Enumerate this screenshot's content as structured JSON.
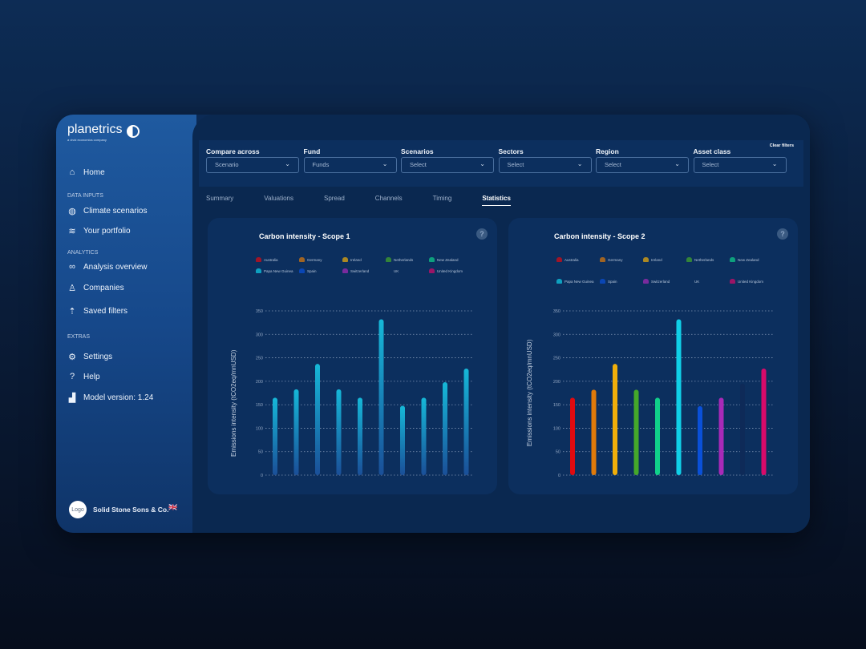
{
  "brand": {
    "name": "planetrics",
    "tagline": "a vivid economics company"
  },
  "sidebar": {
    "home": "Home",
    "sections": {
      "data_inputs": "DATA INPUTS",
      "analytics": "ANALYTICS",
      "extras": "EXTRAS"
    },
    "items": {
      "climate": "Climate scenarios",
      "portfolio": "Your portfolio",
      "analysis": "Analysis overview",
      "companies": "Companies",
      "saved": "Saved filters",
      "settings": "Settings",
      "help": "Help",
      "model": "Model version: 1.24"
    },
    "user": {
      "avatar": "Logo",
      "name": "Solid Stone Sons & Co.",
      "flag": "🇬🇧"
    }
  },
  "filters": [
    {
      "label": "Compare across",
      "value": "Scenario"
    },
    {
      "label": "Fund",
      "value": "Funds"
    },
    {
      "label": "Scenarios",
      "value": "Select"
    },
    {
      "label": "Sectors",
      "value": "Select"
    },
    {
      "label": "Region",
      "value": "Select"
    },
    {
      "label": "Asset class",
      "value": "Select"
    }
  ],
  "clear_filters": "Clear filters",
  "tabs": [
    "Summary",
    "Valuations",
    "Spread",
    "Channels",
    "Timing",
    "Statistics"
  ],
  "active_tab": "Statistics",
  "legend": [
    "Australia",
    "Germany",
    "Ireland",
    "Netherlands",
    "New Zealand",
    "Papa New Guinea",
    "Spain",
    "Switzerland",
    "UK",
    "United Kingdom"
  ],
  "colors": [
    "#e00a10",
    "#e07a0a",
    "#f0ae0a",
    "#45a82a",
    "#10d08a",
    "#10d0e8",
    "#0a50d8",
    "#a82ab8",
    "#0e2a58",
    "#d80a6a"
  ],
  "chart_data": [
    {
      "type": "bar",
      "title": "Carbon intensity - Scope 1",
      "ylabel": "Emissions intensity (tCO2eq/mnUSD)",
      "ylim": [
        0,
        350
      ],
      "yticks": [
        0,
        50,
        100,
        150,
        200,
        250,
        300,
        350
      ],
      "categories": [
        "Australia",
        "Germany",
        "Ireland",
        "Netherlands",
        "New Zealand",
        "Papa New Guinea",
        "Spain",
        "Switzerland",
        "UK",
        "United Kingdom"
      ],
      "values": [
        165,
        183,
        237,
        183,
        165,
        332,
        148,
        165,
        198,
        227
      ],
      "grid": true,
      "legend": "top",
      "bar_color": "gradient cyan-blue"
    },
    {
      "type": "bar",
      "title": "Carbon intensity - Scope 2",
      "ylabel": "Emissions intensity (tCO2eq/mnUSD)",
      "ylim": [
        0,
        350
      ],
      "yticks": [
        0,
        50,
        100,
        150,
        200,
        250,
        300,
        350
      ],
      "categories": [
        "Australia",
        "Germany",
        "Ireland",
        "Netherlands",
        "New Zealand",
        "Papa New Guinea",
        "Spain",
        "Switzerland",
        "UK",
        "United Kingdom"
      ],
      "values": [
        165,
        182,
        237,
        182,
        165,
        332,
        147,
        165,
        195,
        227
      ],
      "grid": true,
      "legend": "top",
      "bar_color": "per-country"
    }
  ]
}
